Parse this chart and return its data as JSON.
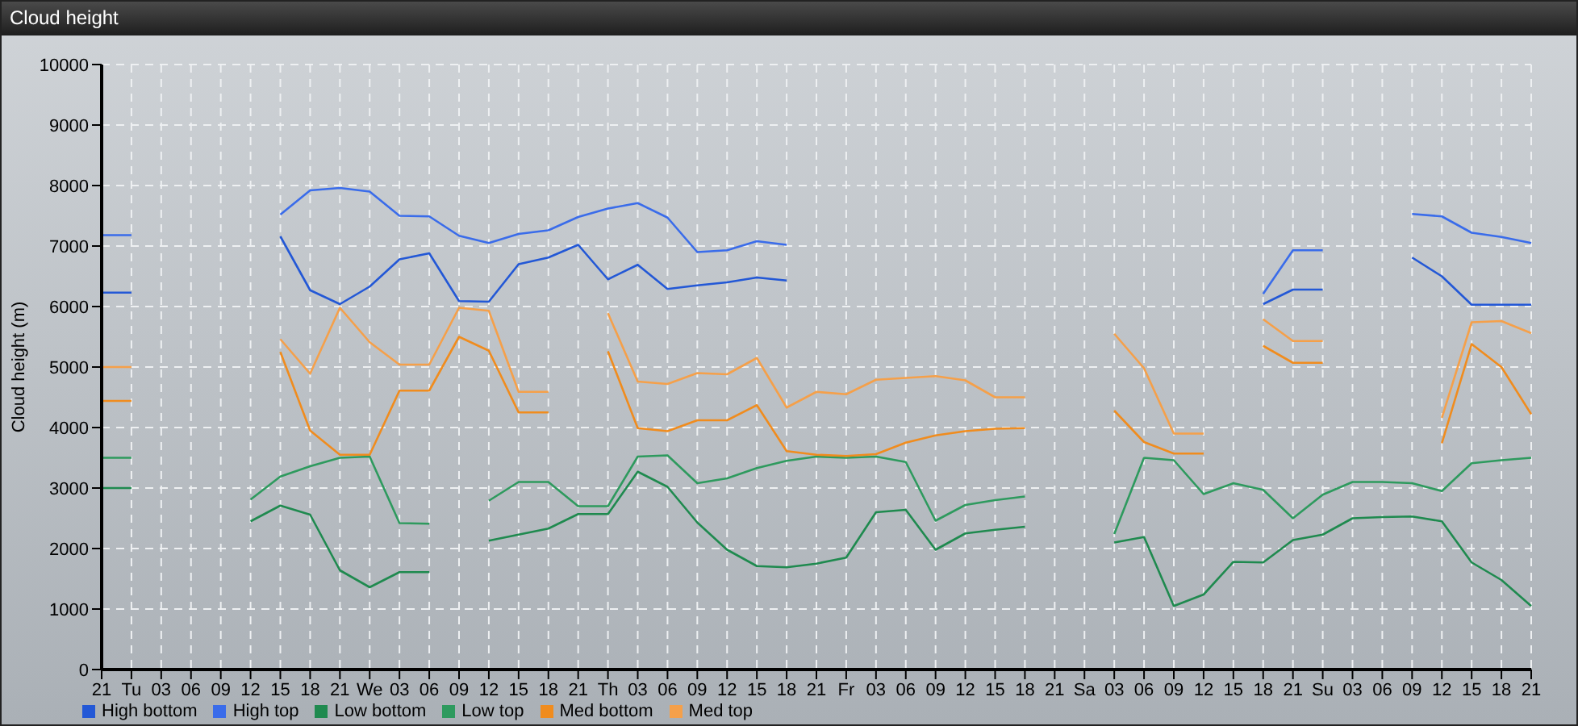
{
  "chart_data": {
    "type": "line",
    "title": "Cloud height",
    "ylabel": "Cloud height (m)",
    "categories": [
      "21",
      "Tu",
      "03",
      "06",
      "09",
      "12",
      "15",
      "18",
      "21",
      "We",
      "03",
      "06",
      "09",
      "12",
      "15",
      "18",
      "21",
      "Th",
      "03",
      "06",
      "09",
      "12",
      "15",
      "18",
      "21",
      "Fr",
      "03",
      "06",
      "09",
      "12",
      "15",
      "18",
      "21",
      "Sa",
      "03",
      "06",
      "09",
      "12",
      "15",
      "18",
      "21",
      "Su",
      "03",
      "06",
      "09",
      "12",
      "15",
      "18",
      "21"
    ],
    "ylim": [
      0,
      10000
    ],
    "yticks": [
      0,
      1000,
      2000,
      3000,
      4000,
      5000,
      6000,
      7000,
      8000,
      9000,
      10000
    ],
    "grid": true,
    "legend": "bottom left",
    "marker": "none",
    "line_style": "solid",
    "series": [
      {
        "name": "Low bottom",
        "color": "#1f8a4f",
        "values": [
          3000,
          3000,
          null,
          null,
          null,
          2450,
          2710,
          2560,
          1640,
          1360,
          1610,
          1610,
          null,
          2130,
          2230,
          2330,
          2570,
          2570,
          3270,
          3020,
          2430,
          1980,
          1710,
          1690,
          1750,
          1850,
          2600,
          2640,
          1980,
          2250,
          2310,
          2360,
          null,
          null,
          2100,
          2190,
          1050,
          1240,
          1780,
          1770,
          2140,
          2230,
          2500,
          2520,
          2530,
          2450,
          1770,
          1480,
          1050
        ]
      },
      {
        "name": "Low top",
        "color": "#2e9a5e",
        "values": [
          3500,
          3500,
          null,
          null,
          null,
          2810,
          3190,
          3360,
          3500,
          3520,
          2420,
          2410,
          null,
          2790,
          3100,
          3100,
          2700,
          2700,
          3520,
          3540,
          3080,
          3160,
          3330,
          3450,
          3520,
          3500,
          3520,
          3430,
          2460,
          2720,
          2800,
          2860,
          null,
          null,
          2240,
          3500,
          3460,
          2900,
          3080,
          2970,
          2500,
          2890,
          3100,
          3100,
          3080,
          2950,
          3410,
          3460,
          3500
        ]
      },
      {
        "name": "Med bottom",
        "color": "#f08c1e",
        "values": [
          4440,
          4440,
          null,
          null,
          null,
          null,
          5250,
          3950,
          3550,
          3550,
          4610,
          4610,
          5500,
          5270,
          4250,
          4250,
          null,
          5260,
          3990,
          3940,
          4120,
          4120,
          4370,
          3610,
          3550,
          3530,
          3560,
          3750,
          3870,
          3940,
          3980,
          3990,
          null,
          null,
          4280,
          3760,
          3570,
          3570,
          null,
          5350,
          5070,
          5070,
          null,
          null,
          null,
          3740,
          5380,
          5000,
          4220
        ]
      },
      {
        "name": "Med top",
        "color": "#f5a04a",
        "values": [
          5000,
          5000,
          null,
          null,
          null,
          null,
          5460,
          4890,
          5980,
          5410,
          5040,
          5040,
          5980,
          5930,
          4590,
          4590,
          null,
          5890,
          4760,
          4720,
          4900,
          4880,
          5150,
          4330,
          4590,
          4550,
          4790,
          4820,
          4850,
          4780,
          4500,
          4500,
          null,
          null,
          5550,
          4980,
          3900,
          3900,
          null,
          5790,
          5430,
          5430,
          null,
          null,
          null,
          4160,
          5740,
          5760,
          5560
        ]
      },
      {
        "name": "High bottom",
        "color": "#2358d6",
        "values": [
          6230,
          6230,
          null,
          null,
          null,
          null,
          7160,
          6270,
          6040,
          6330,
          6780,
          6880,
          6090,
          6080,
          6700,
          6810,
          7020,
          6450,
          6690,
          6290,
          6350,
          6400,
          6480,
          6430,
          null,
          null,
          null,
          null,
          null,
          null,
          null,
          null,
          null,
          null,
          null,
          null,
          null,
          null,
          null,
          6040,
          6280,
          6280,
          null,
          null,
          6810,
          6500,
          6030,
          6030,
          6030
        ]
      },
      {
        "name": "High top",
        "color": "#3a6cea",
        "values": [
          7180,
          7180,
          null,
          null,
          null,
          null,
          7520,
          7920,
          7960,
          7900,
          7500,
          7490,
          7170,
          7050,
          7200,
          7260,
          7480,
          7620,
          7710,
          7470,
          6900,
          6930,
          7080,
          7020,
          null,
          null,
          null,
          null,
          null,
          null,
          null,
          null,
          null,
          null,
          null,
          null,
          null,
          null,
          null,
          6210,
          6930,
          6930,
          null,
          null,
          7530,
          7490,
          7220,
          7150,
          7050
        ]
      }
    ]
  }
}
